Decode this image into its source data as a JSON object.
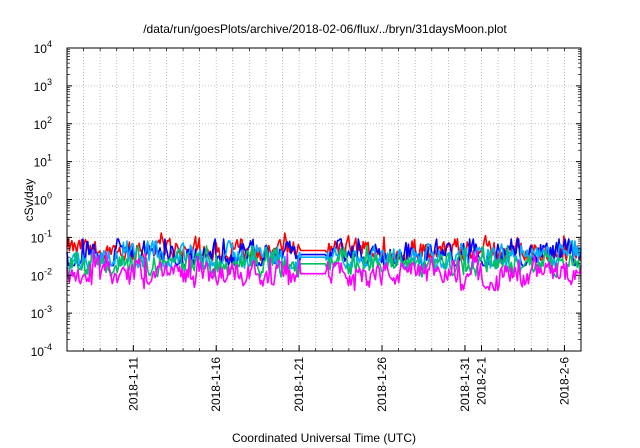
{
  "chart_data": {
    "type": "line",
    "title": "/data/run/goesPlots/archive/2018-02-06/flux/../bryn/31daysMoon.plot",
    "xlabel": "Coordinated Universal Time (UTC)",
    "ylabel": "cSv/day",
    "y_scale": "log",
    "ylim": [
      0.0001,
      10000
    ],
    "y_ticks": [
      {
        "base": "10",
        "exp": "-4"
      },
      {
        "base": "10",
        "exp": "-3"
      },
      {
        "base": "10",
        "exp": "-2"
      },
      {
        "base": "10",
        "exp": "-1"
      },
      {
        "base": "10",
        "exp": "0"
      },
      {
        "base": "10",
        "exp": "1"
      },
      {
        "base": "10",
        "exp": "2"
      },
      {
        "base": "10",
        "exp": "3"
      },
      {
        "base": "10",
        "exp": "4"
      }
    ],
    "x_range": [
      "2018-01-07",
      "2018-02-07"
    ],
    "x_ticks": [
      "2018-1-11",
      "2018-1-16",
      "2018-1-21",
      "2018-1-26",
      "2018-1-31",
      "2018-2-1",
      "2018-2-6"
    ],
    "data_gap": [
      "2018-01-21",
      "2018-01-22"
    ],
    "grid": true,
    "series": [
      {
        "color": "#ff0000",
        "typical": 0.045,
        "min": 0.025,
        "max": 0.13
      },
      {
        "color": "#0000ff",
        "typical": 0.035,
        "min": 0.018,
        "max": 0.09
      },
      {
        "color": "#00b0ff",
        "typical": 0.03,
        "min": 0.015,
        "max": 0.08
      },
      {
        "color": "#00c060",
        "typical": 0.02,
        "min": 0.009,
        "max": 0.06
      },
      {
        "color": "#ff00ff",
        "typical": 0.011,
        "min": 0.004,
        "max": 0.05
      }
    ]
  }
}
